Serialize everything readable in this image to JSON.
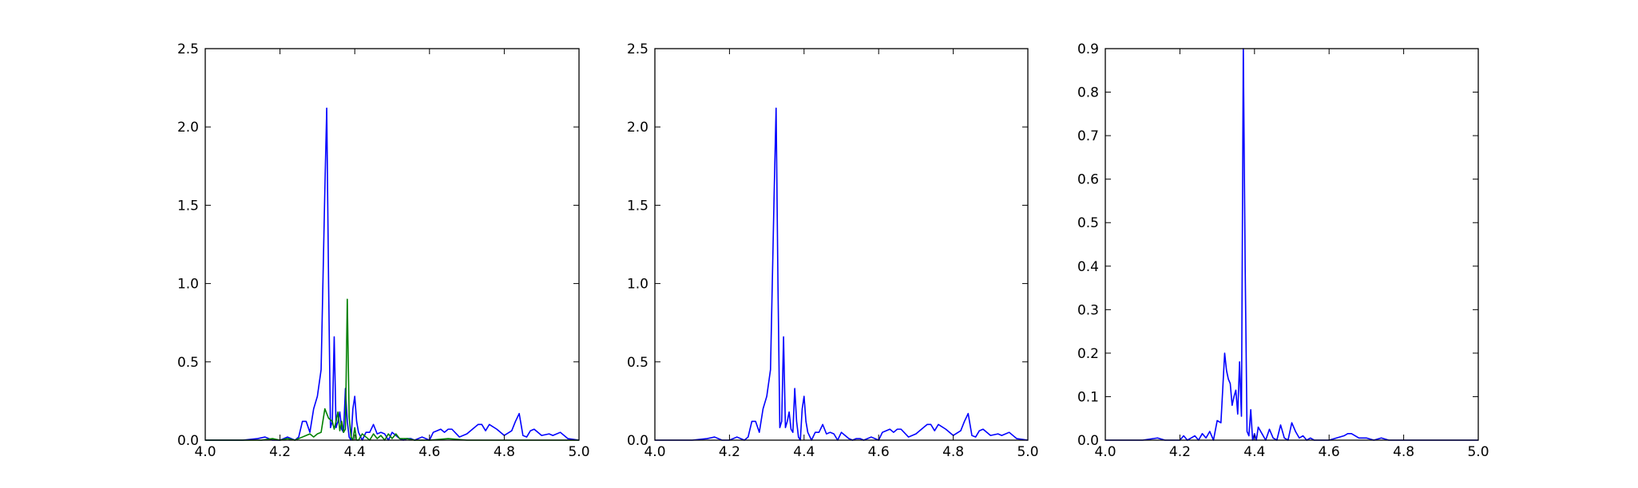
{
  "chart_data": [
    {
      "type": "line",
      "title": "",
      "xlabel": "",
      "ylabel": "",
      "xlim": [
        4.0,
        5.0
      ],
      "ylim": [
        0,
        2.5
      ],
      "grid": false,
      "x_ticks": [
        "4.0",
        "4.2",
        "4.4",
        "4.6",
        "4.8",
        "5.0"
      ],
      "y_ticks": [
        "0.0",
        "0.5",
        "1.0",
        "1.5",
        "2.0",
        "2.5"
      ],
      "series": [
        {
          "color": "#0000ff",
          "x": [
            4.0,
            4.05,
            4.1,
            4.14,
            4.16,
            4.18,
            4.2,
            4.22,
            4.24,
            4.25,
            4.26,
            4.27,
            4.28,
            4.29,
            4.3,
            4.31,
            4.32,
            4.325,
            4.33,
            4.335,
            4.34,
            4.345,
            4.35,
            4.355,
            4.36,
            4.365,
            4.37,
            4.375,
            4.38,
            4.385,
            4.39,
            4.395,
            4.4,
            4.405,
            4.41,
            4.42,
            4.43,
            4.44,
            4.45,
            4.46,
            4.47,
            4.48,
            4.49,
            4.5,
            4.51,
            4.52,
            4.53,
            4.54,
            4.55,
            4.56,
            4.58,
            4.6,
            4.61,
            4.62,
            4.63,
            4.64,
            4.65,
            4.66,
            4.68,
            4.7,
            4.72,
            4.73,
            4.74,
            4.75,
            4.76,
            4.78,
            4.8,
            4.82,
            4.83,
            4.84,
            4.85,
            4.86,
            4.87,
            4.88,
            4.9,
            4.92,
            4.93,
            4.95,
            4.97,
            5.0
          ],
          "y": [
            0.0,
            0.0,
            0.0,
            0.01,
            0.02,
            0.0,
            0.0,
            0.02,
            0.0,
            0.02,
            0.12,
            0.12,
            0.05,
            0.2,
            0.28,
            0.45,
            1.6,
            2.12,
            1.0,
            0.08,
            0.12,
            0.66,
            0.08,
            0.12,
            0.18,
            0.07,
            0.05,
            0.33,
            0.12,
            0.02,
            0.0,
            0.2,
            0.28,
            0.12,
            0.05,
            0.0,
            0.05,
            0.05,
            0.1,
            0.04,
            0.05,
            0.04,
            0.0,
            0.05,
            0.03,
            0.01,
            0.0,
            0.01,
            0.01,
            0.0,
            0.02,
            0.0,
            0.05,
            0.06,
            0.07,
            0.05,
            0.07,
            0.07,
            0.02,
            0.04,
            0.08,
            0.1,
            0.1,
            0.06,
            0.1,
            0.07,
            0.03,
            0.06,
            0.12,
            0.17,
            0.03,
            0.02,
            0.06,
            0.07,
            0.03,
            0.04,
            0.03,
            0.05,
            0.01,
            0.0
          ]
        },
        {
          "color": "#008000",
          "x": [
            4.0,
            4.05,
            4.1,
            4.15,
            4.18,
            4.2,
            4.22,
            4.24,
            4.26,
            4.28,
            4.29,
            4.3,
            4.31,
            4.32,
            4.33,
            4.34,
            4.345,
            4.35,
            4.355,
            4.36,
            4.365,
            4.37,
            4.375,
            4.38,
            4.385,
            4.39,
            4.395,
            4.4,
            4.405,
            4.41,
            4.42,
            4.43,
            4.44,
            4.45,
            4.46,
            4.47,
            4.48,
            4.49,
            4.5,
            4.51,
            4.52,
            4.54,
            4.56,
            4.6,
            4.65,
            4.7,
            5.0
          ],
          "y": [
            0.0,
            0.0,
            0.0,
            0.0,
            0.01,
            0.0,
            0.01,
            0.0,
            0.02,
            0.04,
            0.02,
            0.04,
            0.05,
            0.2,
            0.14,
            0.12,
            0.07,
            0.12,
            0.18,
            0.06,
            0.12,
            0.05,
            0.07,
            0.9,
            0.15,
            0.02,
            0.0,
            0.08,
            0.0,
            0.0,
            0.04,
            0.02,
            0.0,
            0.04,
            0.01,
            0.03,
            0.0,
            0.04,
            0.01,
            0.04,
            0.01,
            0.01,
            0.0,
            0.0,
            0.01,
            0.0,
            0.0
          ]
        }
      ]
    },
    {
      "type": "line",
      "title": "",
      "xlabel": "",
      "ylabel": "",
      "xlim": [
        4.0,
        5.0
      ],
      "ylim": [
        0,
        2.5
      ],
      "grid": false,
      "x_ticks": [
        "4.0",
        "4.2",
        "4.4",
        "4.6",
        "4.8",
        "5.0"
      ],
      "y_ticks": [
        "0.0",
        "0.5",
        "1.0",
        "1.5",
        "2.0",
        "2.5"
      ],
      "series": [
        {
          "color": "#0000ff",
          "x": [
            4.0,
            4.05,
            4.1,
            4.14,
            4.16,
            4.18,
            4.2,
            4.22,
            4.24,
            4.25,
            4.26,
            4.27,
            4.28,
            4.29,
            4.3,
            4.31,
            4.32,
            4.325,
            4.33,
            4.335,
            4.34,
            4.345,
            4.35,
            4.355,
            4.36,
            4.365,
            4.37,
            4.375,
            4.38,
            4.385,
            4.39,
            4.395,
            4.4,
            4.405,
            4.41,
            4.42,
            4.43,
            4.44,
            4.45,
            4.46,
            4.47,
            4.48,
            4.49,
            4.5,
            4.51,
            4.52,
            4.53,
            4.54,
            4.55,
            4.56,
            4.58,
            4.6,
            4.61,
            4.62,
            4.63,
            4.64,
            4.65,
            4.66,
            4.68,
            4.7,
            4.72,
            4.73,
            4.74,
            4.75,
            4.76,
            4.78,
            4.8,
            4.82,
            4.83,
            4.84,
            4.85,
            4.86,
            4.87,
            4.88,
            4.9,
            4.92,
            4.93,
            4.95,
            4.97,
            5.0
          ],
          "y": [
            0.0,
            0.0,
            0.0,
            0.01,
            0.02,
            0.0,
            0.0,
            0.02,
            0.0,
            0.02,
            0.12,
            0.12,
            0.05,
            0.2,
            0.28,
            0.45,
            1.6,
            2.12,
            1.0,
            0.08,
            0.12,
            0.66,
            0.08,
            0.12,
            0.18,
            0.07,
            0.05,
            0.33,
            0.12,
            0.02,
            0.0,
            0.2,
            0.28,
            0.12,
            0.05,
            0.0,
            0.05,
            0.05,
            0.1,
            0.04,
            0.05,
            0.04,
            0.0,
            0.05,
            0.03,
            0.01,
            0.0,
            0.01,
            0.01,
            0.0,
            0.02,
            0.0,
            0.05,
            0.06,
            0.07,
            0.05,
            0.07,
            0.07,
            0.02,
            0.04,
            0.08,
            0.1,
            0.1,
            0.06,
            0.1,
            0.07,
            0.03,
            0.06,
            0.12,
            0.17,
            0.03,
            0.02,
            0.06,
            0.07,
            0.03,
            0.04,
            0.03,
            0.05,
            0.01,
            0.0
          ]
        }
      ]
    },
    {
      "type": "line",
      "title": "",
      "xlabel": "",
      "ylabel": "",
      "xlim": [
        4.0,
        5.0
      ],
      "ylim": [
        0,
        0.9
      ],
      "grid": false,
      "x_ticks": [
        "4.0",
        "4.2",
        "4.4",
        "4.6",
        "4.8",
        "5.0"
      ],
      "y_ticks": [
        "0.0",
        "0.1",
        "0.2",
        "0.3",
        "0.4",
        "0.5",
        "0.6",
        "0.7",
        "0.8",
        "0.9"
      ],
      "series": [
        {
          "color": "#0000ff",
          "x": [
            4.0,
            4.05,
            4.1,
            4.14,
            4.16,
            4.2,
            4.21,
            4.22,
            4.23,
            4.24,
            4.25,
            4.26,
            4.27,
            4.28,
            4.29,
            4.3,
            4.31,
            4.32,
            4.325,
            4.33,
            4.335,
            4.34,
            4.345,
            4.35,
            4.355,
            4.36,
            4.365,
            4.37,
            4.375,
            4.38,
            4.385,
            4.39,
            4.395,
            4.4,
            4.405,
            4.41,
            4.42,
            4.43,
            4.44,
            4.45,
            4.46,
            4.47,
            4.48,
            4.49,
            4.5,
            4.51,
            4.52,
            4.53,
            4.54,
            4.55,
            4.56,
            4.58,
            4.6,
            4.62,
            4.64,
            4.65,
            4.66,
            4.67,
            4.68,
            4.7,
            4.72,
            4.74,
            4.76,
            4.8,
            4.85,
            4.9,
            4.95,
            5.0
          ],
          "y": [
            0.0,
            0.0,
            0.0,
            0.005,
            0.0,
            0.0,
            0.01,
            0.0,
            0.005,
            0.01,
            0.0,
            0.015,
            0.005,
            0.02,
            0.0,
            0.045,
            0.04,
            0.2,
            0.16,
            0.14,
            0.13,
            0.08,
            0.1,
            0.115,
            0.06,
            0.18,
            0.055,
            0.9,
            0.4,
            0.02,
            0.01,
            0.07,
            0.0,
            0.015,
            0.0,
            0.03,
            0.015,
            0.0,
            0.025,
            0.005,
            0.0,
            0.035,
            0.005,
            0.0,
            0.04,
            0.02,
            0.005,
            0.01,
            0.0,
            0.005,
            0.0,
            0.0,
            0.0,
            0.005,
            0.01,
            0.015,
            0.015,
            0.01,
            0.005,
            0.005,
            0.0,
            0.005,
            0.0,
            0.0,
            0.0,
            0.0,
            0.0,
            0.0
          ]
        }
      ]
    }
  ]
}
